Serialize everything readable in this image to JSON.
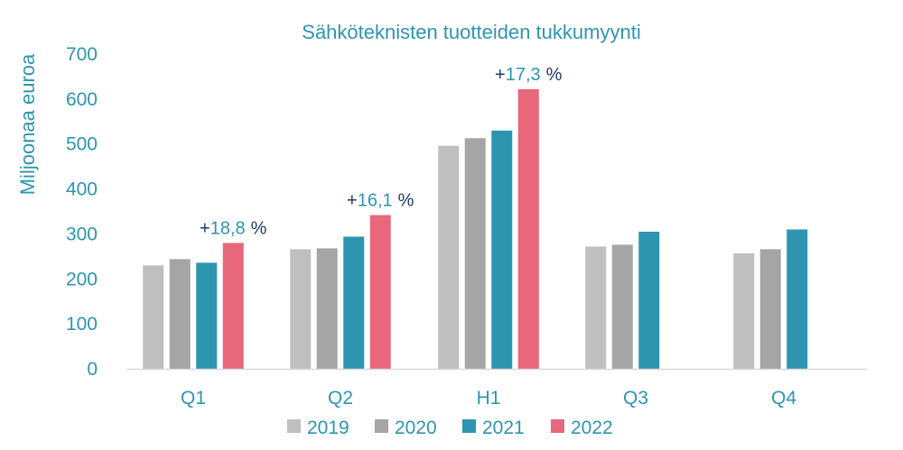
{
  "chart_data": {
    "type": "bar",
    "title": "Sähköteknisten tuotteiden tukkumyynti",
    "xlabel": "",
    "ylabel": "Miljoonaa euroa",
    "ylim": [
      0,
      700
    ],
    "yticks": [
      "0",
      "100",
      "200",
      "300",
      "400",
      "500",
      "600",
      "700"
    ],
    "grid": false,
    "legend_position": "bottom",
    "categories": [
      "Q1",
      "Q2",
      "H1",
      "Q3",
      "Q4"
    ],
    "series": [
      {
        "name": "2019",
        "color": "#BFBFBF",
        "values": [
          230,
          266,
          496,
          272,
          257
        ]
      },
      {
        "name": "2020",
        "color": "#A5A5A5",
        "values": [
          244,
          268,
          513,
          276,
          266
        ]
      },
      {
        "name": "2021",
        "color": "#2E95B0",
        "values": [
          236,
          294,
          530,
          305,
          310
        ]
      },
      {
        "name": "2022",
        "color": "#E8677A",
        "values": [
          280,
          342,
          622,
          null,
          null
        ]
      }
    ],
    "annotations": [
      {
        "category": "Q1",
        "sign": "+",
        "number": "18,8",
        "unit": "%"
      },
      {
        "category": "Q2",
        "sign": "+",
        "number": "16,1",
        "unit": "%"
      },
      {
        "category": "H1",
        "sign": "+",
        "number": "17,3",
        "unit": "%"
      }
    ],
    "colors": {
      "text": "#2E95B0",
      "annotation_symbols": "#1F3B64",
      "axis": "#D9D9D9"
    }
  }
}
